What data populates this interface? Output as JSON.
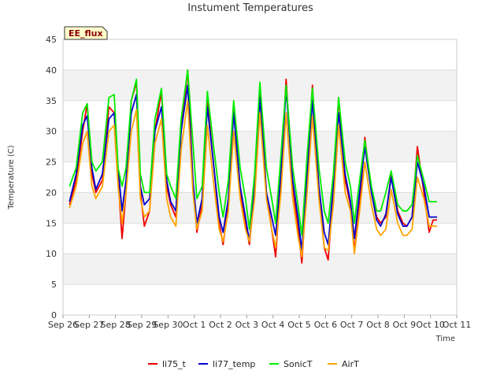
{
  "site_label": "EE_flux",
  "chart_data": {
    "type": "line",
    "title": "Instument Temperatures",
    "xlabel": "Time",
    "ylabel": "Temperature (C)",
    "ylim": [
      0,
      45
    ],
    "yticks": [
      0,
      5,
      10,
      15,
      20,
      25,
      30,
      35,
      40,
      45
    ],
    "xlim": [
      0,
      15
    ],
    "xticks": [
      0,
      1,
      2,
      3,
      4,
      5,
      6,
      7,
      8,
      9,
      10,
      11,
      12,
      13,
      14,
      15
    ],
    "xtick_labels": [
      "Sep 26",
      "Sep 27",
      "Sep 28",
      "Sep 29",
      "Sep 30",
      "Oct 1",
      "Oct 2",
      "Oct 3",
      "Oct 4",
      "Oct 5",
      "Oct 6",
      "Oct 7",
      "Oct 8",
      "Oct 9",
      "Oct 10",
      "Oct 11"
    ],
    "x_unit_note": "x values are days since Sep 26 00:00",
    "grid": true,
    "legend": "bottom",
    "series": [
      {
        "name": "li75_t",
        "color": "#ee0000",
        "x": [
          0.25,
          0.5,
          0.75,
          0.92,
          1.1,
          1.25,
          1.5,
          1.75,
          1.95,
          2.1,
          2.25,
          2.4,
          2.6,
          2.8,
          2.95,
          3.1,
          3.3,
          3.5,
          3.75,
          3.95,
          4.1,
          4.3,
          4.5,
          4.75,
          4.95,
          5.1,
          5.3,
          5.5,
          5.75,
          5.95,
          6.1,
          6.3,
          6.5,
          6.75,
          6.95,
          7.1,
          7.3,
          7.5,
          7.75,
          7.95,
          8.1,
          8.3,
          8.5,
          8.75,
          8.95,
          9.1,
          9.3,
          9.5,
          9.75,
          9.95,
          10.1,
          10.3,
          10.5,
          10.75,
          10.95,
          11.1,
          11.3,
          11.5,
          11.75,
          11.95,
          12.1,
          12.3,
          12.5,
          12.75,
          12.95,
          13.1,
          13.3,
          13.5,
          13.75,
          13.95,
          14.1,
          14.25
        ],
        "y": [
          18.0,
          22.0,
          30.0,
          34.5,
          23.0,
          20.0,
          22.0,
          34.0,
          33.0,
          22.0,
          12.5,
          20.0,
          35.0,
          38.0,
          20.0,
          14.5,
          17.0,
          30.0,
          36.5,
          21.0,
          18.0,
          16.0,
          30.0,
          40.0,
          22.0,
          13.5,
          18.0,
          35.0,
          24.0,
          15.0,
          11.5,
          18.0,
          34.0,
          20.0,
          15.0,
          11.5,
          20.0,
          37.0,
          20.0,
          14.0,
          9.5,
          22.0,
          38.5,
          21.0,
          14.5,
          8.5,
          22.0,
          37.5,
          20.0,
          11.0,
          9.0,
          20.0,
          35.5,
          22.0,
          18.0,
          10.5,
          18.0,
          29.0,
          20.0,
          16.0,
          15.0,
          16.0,
          23.0,
          17.0,
          15.0,
          14.5,
          16.0,
          27.5,
          20.0,
          13.5,
          15.5,
          15.5
        ]
      },
      {
        "name": "li77_temp",
        "color": "#0000cc",
        "x": [
          0.25,
          0.5,
          0.75,
          0.92,
          1.1,
          1.25,
          1.5,
          1.75,
          1.95,
          2.1,
          2.25,
          2.4,
          2.6,
          2.8,
          2.95,
          3.1,
          3.3,
          3.5,
          3.75,
          3.95,
          4.1,
          4.3,
          4.5,
          4.75,
          4.95,
          5.1,
          5.3,
          5.5,
          5.75,
          5.95,
          6.1,
          6.3,
          6.5,
          6.75,
          6.95,
          7.1,
          7.3,
          7.5,
          7.75,
          7.95,
          8.1,
          8.3,
          8.5,
          8.75,
          8.95,
          9.1,
          9.3,
          9.5,
          9.75,
          9.95,
          10.1,
          10.3,
          10.5,
          10.75,
          10.95,
          11.1,
          11.3,
          11.5,
          11.75,
          11.95,
          12.1,
          12.3,
          12.5,
          12.75,
          12.95,
          13.1,
          13.3,
          13.5,
          13.75,
          13.95,
          14.1,
          14.25
        ],
        "y": [
          18.5,
          23.0,
          31.0,
          32.5,
          24.0,
          20.5,
          23.0,
          32.0,
          33.0,
          24.0,
          17.0,
          22.0,
          33.0,
          36.0,
          21.0,
          18.0,
          19.0,
          30.0,
          34.0,
          22.0,
          18.5,
          17.0,
          30.0,
          37.5,
          22.0,
          15.0,
          19.0,
          34.0,
          24.0,
          16.0,
          13.5,
          19.0,
          33.0,
          21.0,
          16.0,
          12.0,
          21.0,
          35.5,
          20.0,
          16.0,
          13.0,
          23.0,
          37.0,
          22.0,
          16.0,
          10.5,
          23.0,
          35.0,
          21.0,
          13.5,
          11.5,
          21.0,
          33.0,
          23.0,
          18.5,
          12.5,
          20.0,
          27.5,
          20.0,
          15.5,
          14.5,
          16.5,
          22.5,
          16.5,
          14.5,
          14.5,
          16.0,
          25.0,
          21.0,
          16.0,
          16.0,
          16.0
        ]
      },
      {
        "name": "SonicT",
        "color": "#00ee00",
        "x": [
          0.25,
          0.5,
          0.75,
          0.92,
          1.1,
          1.25,
          1.5,
          1.75,
          1.95,
          2.1,
          2.25,
          2.4,
          2.6,
          2.8,
          2.95,
          3.1,
          3.3,
          3.5,
          3.75,
          3.95,
          4.1,
          4.3,
          4.5,
          4.75,
          4.95,
          5.1,
          5.3,
          5.5,
          5.75,
          5.95,
          6.1,
          6.3,
          6.5,
          6.75,
          6.95,
          7.1,
          7.3,
          7.5,
          7.75,
          7.95,
          8.1,
          8.3,
          8.5,
          8.75,
          8.95,
          9.1,
          9.3,
          9.5,
          9.75,
          9.95,
          10.1,
          10.3,
          10.5,
          10.75,
          10.95,
          11.1,
          11.3,
          11.5,
          11.75,
          11.95,
          12.1,
          12.3,
          12.5,
          12.75,
          12.95,
          13.1,
          13.3,
          13.5,
          13.75,
          13.95,
          14.1,
          14.25
        ],
        "y": [
          21.0,
          24.0,
          33.0,
          34.5,
          25.0,
          23.5,
          25.0,
          35.5,
          36.0,
          24.0,
          21.0,
          24.0,
          35.0,
          38.5,
          23.0,
          20.0,
          20.0,
          32.0,
          37.0,
          23.0,
          21.0,
          19.0,
          32.0,
          40.0,
          28.0,
          19.0,
          21.0,
          36.5,
          27.0,
          20.0,
          16.0,
          22.0,
          35.0,
          24.0,
          19.0,
          14.0,
          23.0,
          38.0,
          24.0,
          19.0,
          15.0,
          26.0,
          37.5,
          24.0,
          18.0,
          13.0,
          26.0,
          37.0,
          24.0,
          17.0,
          15.0,
          23.0,
          35.5,
          25.0,
          21.0,
          15.0,
          22.0,
          28.5,
          21.0,
          17.0,
          17.0,
          20.0,
          23.5,
          18.0,
          17.0,
          17.0,
          18.0,
          26.0,
          22.0,
          18.5,
          18.5,
          18.5
        ]
      },
      {
        "name": "AirT",
        "color": "#ffa500",
        "x": [
          0.25,
          0.5,
          0.75,
          0.92,
          1.1,
          1.25,
          1.5,
          1.75,
          1.95,
          2.1,
          2.25,
          2.4,
          2.6,
          2.8,
          2.95,
          3.1,
          3.3,
          3.5,
          3.75,
          3.95,
          4.1,
          4.3,
          4.5,
          4.75,
          4.95,
          5.1,
          5.3,
          5.5,
          5.75,
          5.95,
          6.1,
          6.3,
          6.5,
          6.75,
          6.95,
          7.1,
          7.3,
          7.5,
          7.75,
          7.95,
          8.1,
          8.3,
          8.5,
          8.75,
          8.95,
          9.1,
          9.3,
          9.5,
          9.75,
          9.95,
          10.1,
          10.3,
          10.5,
          10.75,
          10.95,
          11.1,
          11.3,
          11.5,
          11.75,
          11.95,
          12.1,
          12.3,
          12.5,
          12.75,
          12.95,
          13.1,
          13.3,
          13.5,
          13.75,
          13.95,
          14.1,
          14.25
        ],
        "y": [
          17.5,
          21.0,
          28.0,
          30.0,
          21.0,
          19.0,
          21.0,
          30.0,
          31.0,
          21.0,
          15.0,
          20.0,
          30.0,
          33.5,
          19.0,
          16.0,
          17.0,
          28.0,
          32.0,
          19.0,
          16.0,
          14.5,
          27.0,
          35.0,
          20.0,
          14.0,
          17.0,
          31.0,
          21.0,
          14.0,
          12.0,
          17.0,
          30.0,
          19.0,
          14.0,
          12.0,
          19.0,
          33.0,
          19.0,
          14.0,
          11.0,
          20.0,
          33.0,
          19.0,
          13.0,
          9.5,
          20.0,
          32.5,
          19.0,
          11.0,
          10.5,
          18.0,
          31.0,
          20.0,
          17.0,
          10.0,
          17.0,
          25.0,
          18.0,
          14.0,
          13.0,
          14.0,
          20.5,
          15.0,
          13.0,
          13.0,
          14.0,
          22.5,
          19.0,
          14.5,
          14.5,
          14.5
        ]
      }
    ]
  }
}
